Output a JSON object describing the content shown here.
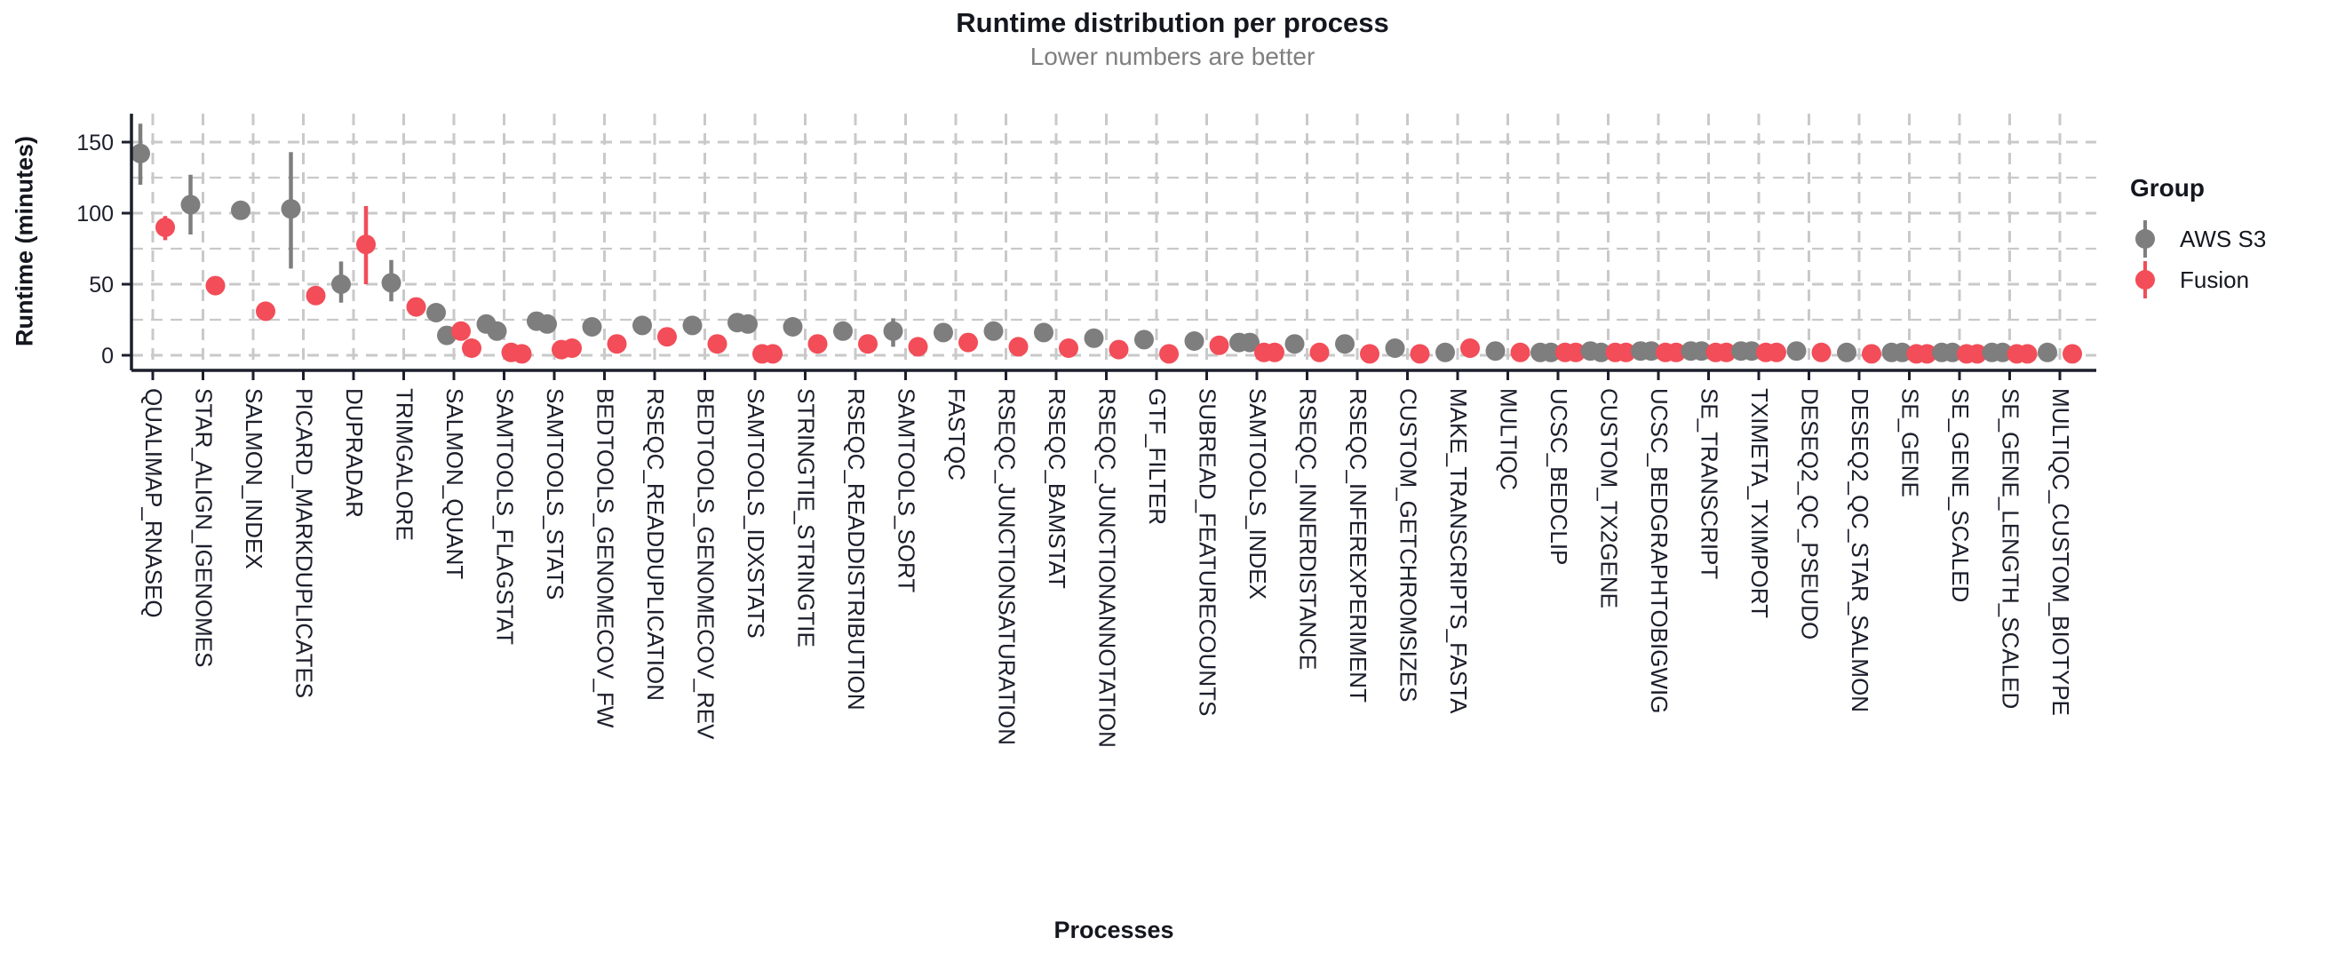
{
  "chart_data": {
    "type": "scatter",
    "title": "Runtime distribution per process",
    "subtitle": "Lower numbers are better",
    "xlabel": "Processes",
    "ylabel": "Runtime (minutes)",
    "ylim": [
      0,
      170
    ],
    "yticks": [
      0,
      50,
      100,
      150
    ],
    "yticks_minor": [
      25,
      75,
      125
    ],
    "grid": "dashed",
    "legend": {
      "title": "Group",
      "position": "right",
      "items": [
        {
          "label": "AWS S3",
          "color": "#7e7e7e"
        },
        {
          "label": "Fusion",
          "color": "#f24d58"
        }
      ]
    },
    "series_meta": {
      "aws_color": "#7e7e7e",
      "fusion_color": "#f24d58",
      "note": "values in minutes; two entries in a value array = two visible sample points; range = error bar [low, high]"
    },
    "processes": [
      {
        "name": "QUALIMAP_RNASEQ",
        "aws": [
          142
        ],
        "aws_range": [
          120,
          163
        ],
        "fusion": [
          90
        ],
        "fusion_range": [
          81,
          98
        ]
      },
      {
        "name": "STAR_ALIGN_IGENOMES",
        "aws": [
          106
        ],
        "aws_range": [
          85,
          127
        ],
        "fusion": [
          49
        ],
        "fusion_range": null
      },
      {
        "name": "SALMON_INDEX",
        "aws": [
          102
        ],
        "aws_range": null,
        "fusion": [
          31
        ],
        "fusion_range": null
      },
      {
        "name": "PICARD_MARKDUPLICATES",
        "aws": [
          103
        ],
        "aws_range": [
          61,
          143
        ],
        "fusion": [
          42
        ],
        "fusion_range": null
      },
      {
        "name": "DUPRADAR",
        "aws": [
          50
        ],
        "aws_range": [
          37,
          66
        ],
        "fusion": [
          78
        ],
        "fusion_range": [
          50,
          105
        ]
      },
      {
        "name": "TRIMGALORE",
        "aws": [
          51
        ],
        "aws_range": [
          38,
          67
        ],
        "fusion": [
          34
        ],
        "fusion_range": null
      },
      {
        "name": "SALMON_QUANT",
        "aws": [
          30,
          14
        ],
        "aws_range": null,
        "fusion": [
          17,
          5
        ],
        "fusion_range": null
      },
      {
        "name": "SAMTOOLS_FLAGSTAT",
        "aws": [
          22,
          17
        ],
        "aws_range": null,
        "fusion": [
          2,
          1
        ],
        "fusion_range": null
      },
      {
        "name": "SAMTOOLS_STATS",
        "aws": [
          24,
          22
        ],
        "aws_range": null,
        "fusion": [
          4,
          5
        ],
        "fusion_range": null
      },
      {
        "name": "BEDTOOLS_GENOMECOV_FW",
        "aws": [
          20
        ],
        "aws_range": null,
        "fusion": [
          8
        ],
        "fusion_range": null
      },
      {
        "name": "RSEQC_READDUPLICATION",
        "aws": [
          21
        ],
        "aws_range": null,
        "fusion": [
          13
        ],
        "fusion_range": null
      },
      {
        "name": "BEDTOOLS_GENOMECOV_REV",
        "aws": [
          21
        ],
        "aws_range": null,
        "fusion": [
          8
        ],
        "fusion_range": null
      },
      {
        "name": "SAMTOOLS_IDXSTATS",
        "aws": [
          23,
          22
        ],
        "aws_range": null,
        "fusion": [
          1,
          1
        ],
        "fusion_range": null
      },
      {
        "name": "STRINGTIE_STRINGTIE",
        "aws": [
          20
        ],
        "aws_range": null,
        "fusion": [
          8
        ],
        "fusion_range": null
      },
      {
        "name": "RSEQC_READDISTRIBUTION",
        "aws": [
          17
        ],
        "aws_range": null,
        "fusion": [
          8
        ],
        "fusion_range": null
      },
      {
        "name": "SAMTOOLS_SORT",
        "aws": [
          17
        ],
        "aws_range": [
          6,
          26
        ],
        "fusion": [
          6
        ],
        "fusion_range": null
      },
      {
        "name": "FASTQC",
        "aws": [
          16
        ],
        "aws_range": null,
        "fusion": [
          9
        ],
        "fusion_range": null
      },
      {
        "name": "RSEQC_JUNCTIONSATURATION",
        "aws": [
          17
        ],
        "aws_range": null,
        "fusion": [
          6
        ],
        "fusion_range": null
      },
      {
        "name": "RSEQC_BAMSTAT",
        "aws": [
          16
        ],
        "aws_range": null,
        "fusion": [
          5
        ],
        "fusion_range": null
      },
      {
        "name": "RSEQC_JUNCTIONANNOTATION",
        "aws": [
          12
        ],
        "aws_range": null,
        "fusion": [
          4
        ],
        "fusion_range": null
      },
      {
        "name": "GTF_FILTER",
        "aws": [
          11
        ],
        "aws_range": null,
        "fusion": [
          1
        ],
        "fusion_range": null
      },
      {
        "name": "SUBREAD_FEATURECOUNTS",
        "aws": [
          10
        ],
        "aws_range": null,
        "fusion": [
          7
        ],
        "fusion_range": null
      },
      {
        "name": "SAMTOOLS_INDEX",
        "aws": [
          9,
          9
        ],
        "aws_range": null,
        "fusion": [
          2,
          2
        ],
        "fusion_range": null
      },
      {
        "name": "RSEQC_INNERDISTANCE",
        "aws": [
          8
        ],
        "aws_range": null,
        "fusion": [
          2
        ],
        "fusion_range": null
      },
      {
        "name": "RSEQC_INFEREXPERIMENT",
        "aws": [
          8
        ],
        "aws_range": null,
        "fusion": [
          1
        ],
        "fusion_range": null
      },
      {
        "name": "CUSTOM_GETCHROMSIZES",
        "aws": [
          5
        ],
        "aws_range": null,
        "fusion": [
          1
        ],
        "fusion_range": null
      },
      {
        "name": "MAKE_TRANSCRIPTS_FASTA",
        "aws": [
          2
        ],
        "aws_range": null,
        "fusion": [
          5
        ],
        "fusion_range": null
      },
      {
        "name": "MULTIQC",
        "aws": [
          3
        ],
        "aws_range": null,
        "fusion": [
          2
        ],
        "fusion_range": null
      },
      {
        "name": "UCSC_BEDCLIP",
        "aws": [
          2,
          2
        ],
        "aws_range": null,
        "fusion": [
          2,
          2
        ],
        "fusion_range": null
      },
      {
        "name": "CUSTOM_TX2GENE",
        "aws": [
          3,
          2
        ],
        "aws_range": null,
        "fusion": [
          2,
          2
        ],
        "fusion_range": null
      },
      {
        "name": "UCSC_BEDGRAPHTOBIGWIG",
        "aws": [
          3,
          3
        ],
        "aws_range": null,
        "fusion": [
          2,
          2
        ],
        "fusion_range": null
      },
      {
        "name": "SE_TRANSCRIPT",
        "aws": [
          3,
          3
        ],
        "aws_range": null,
        "fusion": [
          2,
          2
        ],
        "fusion_range": null
      },
      {
        "name": "TXIMETA_TXIMPORT",
        "aws": [
          3,
          3
        ],
        "aws_range": null,
        "fusion": [
          2,
          2
        ],
        "fusion_range": null
      },
      {
        "name": "DESEQ2_QC_PSEUDO",
        "aws": [
          3
        ],
        "aws_range": null,
        "fusion": [
          2
        ],
        "fusion_range": null
      },
      {
        "name": "DESEQ2_QC_STAR_SALMON",
        "aws": [
          2
        ],
        "aws_range": null,
        "fusion": [
          1
        ],
        "fusion_range": null
      },
      {
        "name": "SE_GENE",
        "aws": [
          2,
          2
        ],
        "aws_range": null,
        "fusion": [
          1,
          1
        ],
        "fusion_range": null
      },
      {
        "name": "SE_GENE_SCALED",
        "aws": [
          2,
          2
        ],
        "aws_range": null,
        "fusion": [
          1,
          1
        ],
        "fusion_range": null
      },
      {
        "name": "SE_GENE_LENGTH_SCALED",
        "aws": [
          2,
          2
        ],
        "aws_range": null,
        "fusion": [
          1,
          1
        ],
        "fusion_range": null
      },
      {
        "name": "MULTIQC_CUSTOM_BIOTYPE",
        "aws": [
          2
        ],
        "aws_range": null,
        "fusion": [
          1
        ],
        "fusion_range": null
      }
    ]
  },
  "style_colors": {
    "axis_text": "#1c1f2b",
    "grid": "#c9c9c9",
    "title": "#15171f",
    "subtitle": "#7f7f7f"
  }
}
